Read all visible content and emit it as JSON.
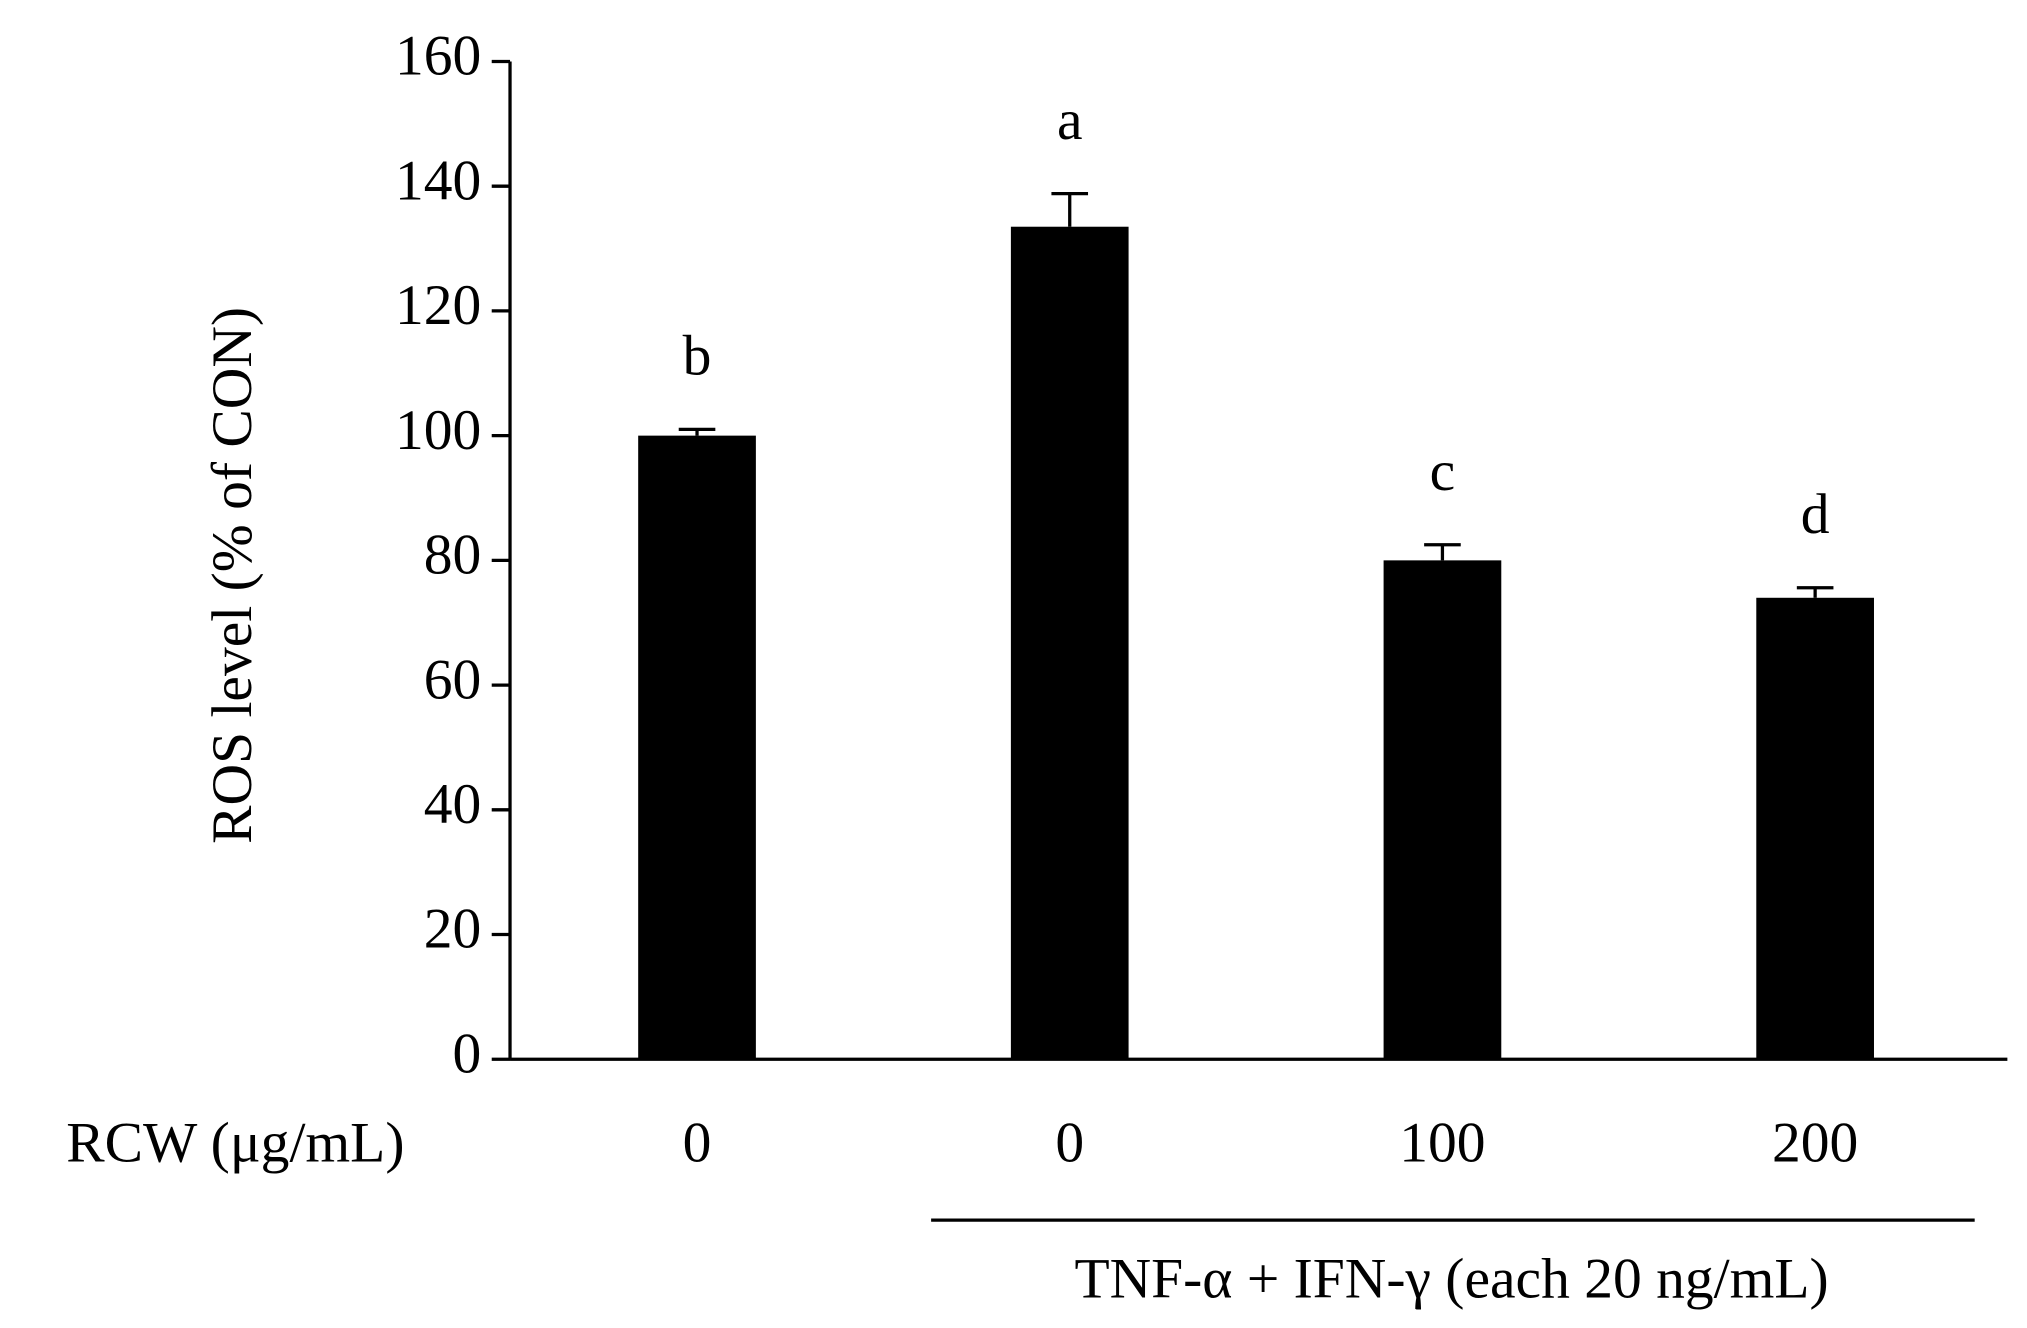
{
  "chart_data": {
    "type": "bar",
    "y_label": "ROS level (% of CON)",
    "x_label": "RCW (μg/mL)",
    "categories": [
      "0",
      "0",
      "100",
      "200"
    ],
    "values": [
      100,
      133.5,
      80,
      74
    ],
    "errors": [
      1,
      5.3,
      2.5,
      1.6
    ],
    "annotations": [
      "b",
      "a",
      "c",
      "d"
    ],
    "group_label": "TNF-α + IFN-γ  (each 20 ng/mL)",
    "color": "#000000",
    "ylim": [
      0,
      160
    ],
    "yticks": [
      0,
      20,
      40,
      60,
      80,
      100,
      120,
      140,
      160
    ]
  }
}
